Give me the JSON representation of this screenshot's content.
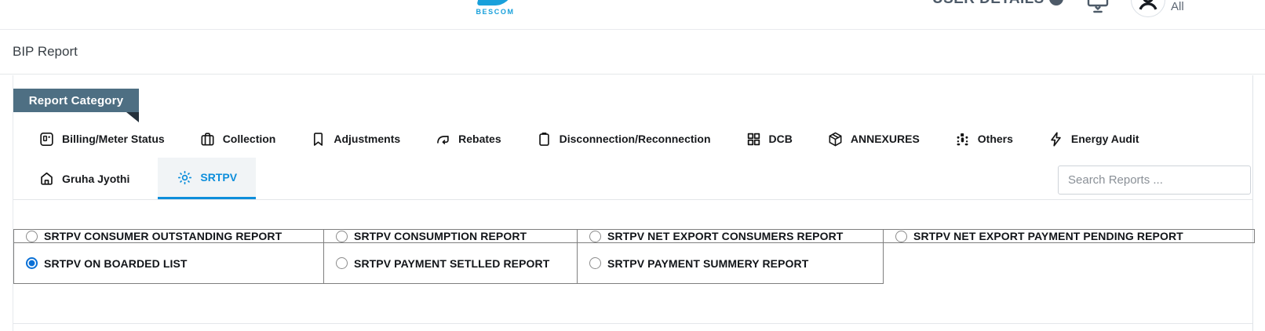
{
  "header": {
    "logo_text": "BESCOM",
    "user_details_label": "USER DETAILS",
    "scope_label": "All"
  },
  "breadcrumb": {
    "title": "BIP Report"
  },
  "report_category": {
    "tag_label": "Report Category",
    "tabs": [
      {
        "label": "Billing/Meter Status",
        "icon": "meter-icon",
        "active": false
      },
      {
        "label": "Collection",
        "icon": "briefcase-icon",
        "active": false
      },
      {
        "label": "Adjustments",
        "icon": "bookmark-icon",
        "active": false
      },
      {
        "label": "Rebates",
        "icon": "return-arrow-icon",
        "active": false
      },
      {
        "label": "Disconnection/Reconnection",
        "icon": "clipboard-icon",
        "active": false
      },
      {
        "label": "DCB",
        "icon": "grid-icon",
        "active": false
      },
      {
        "label": "ANNEXURES",
        "icon": "package-icon",
        "active": false
      },
      {
        "label": "Others",
        "icon": "dots-cluster-icon",
        "active": false
      },
      {
        "label": "Energy Audit",
        "icon": "lightning-icon",
        "active": false
      }
    ],
    "tabs_row2": [
      {
        "label": "Gruha Jyothi",
        "icon": "home-icon",
        "active": false
      },
      {
        "label": "SRTPV",
        "icon": "sun-icon",
        "active": true
      }
    ],
    "search": {
      "placeholder": "Search Reports ..."
    }
  },
  "reports": {
    "columns": 4,
    "rows": [
      [
        {
          "label": "SRTPV CONSUMER OUTSTANDING REPORT",
          "selected": false
        },
        {
          "label": "SRTPV CONSUMPTION REPORT",
          "selected": false
        },
        {
          "label": "SRTPV NET EXPORT CONSUMERS REPORT",
          "selected": false
        },
        {
          "label": "SRTPV NET EXPORT PAYMENT PENDING REPORT",
          "selected": false
        }
      ],
      [
        {
          "label": "SRTPV ON BOARDED LIST",
          "selected": true
        },
        {
          "label": "SRTPV PAYMENT SETLLED REPORT",
          "selected": false
        },
        {
          "label": "SRTPV PAYMENT SUMMERY REPORT",
          "selected": false
        }
      ]
    ]
  },
  "colors": {
    "accent_blue": "#0d8edb",
    "radio_blue": "#0a70d6",
    "category_tag_bg": "#4e6f83",
    "table_border": "#7f7f7f",
    "logo_blue": "#18a0db"
  }
}
